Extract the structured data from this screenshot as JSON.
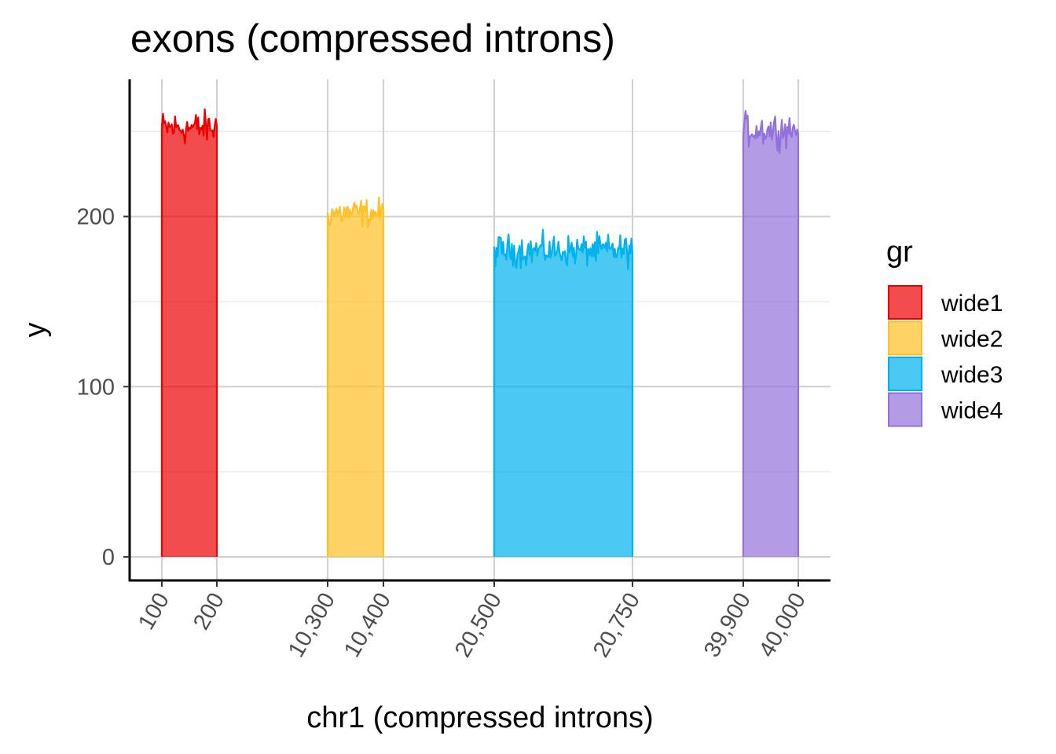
{
  "chart_data": {
    "type": "area",
    "title": "exons (compressed introns)",
    "xlabel": "chr1 (compressed introns)",
    "ylabel": "y",
    "grid": true,
    "legend_title": "gr",
    "legend_position": "right",
    "ylim": [
      -7,
      275
    ],
    "y_ticks": [
      0,
      100,
      200
    ],
    "y_tick_labels": [
      "0",
      "100",
      "200"
    ],
    "x_tick_labels": [
      "100",
      "200",
      "10,300",
      "10,400",
      "20,500",
      "20,750",
      "39,900",
      "40,000"
    ],
    "series": [
      {
        "name": "wide1",
        "color": "#EE0000",
        "start": 100,
        "end": 200,
        "mean": 252,
        "noise": 7,
        "points": 50
      },
      {
        "name": "wide2",
        "color": "#FFC125",
        "start": 10300,
        "end": 10400,
        "mean": 202,
        "noise": 6,
        "points": 50
      },
      {
        "name": "wide3",
        "color": "#00B2EE",
        "start": 20500,
        "end": 20750,
        "mean": 180,
        "noise": 6.5,
        "points": 125
      },
      {
        "name": "wide4",
        "color": "#9370DB",
        "start": 39900,
        "end": 40000,
        "mean": 251,
        "noise": 7,
        "points": 50
      }
    ]
  }
}
